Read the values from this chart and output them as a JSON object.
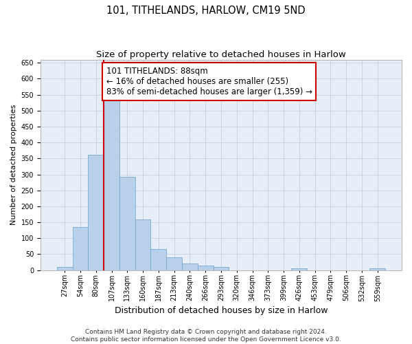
{
  "title": "101, TITHELANDS, HARLOW, CM19 5ND",
  "subtitle": "Size of property relative to detached houses in Harlow",
  "xlabel": "Distribution of detached houses by size in Harlow",
  "ylabel": "Number of detached properties",
  "categories": [
    "27sqm",
    "54sqm",
    "80sqm",
    "107sqm",
    "133sqm",
    "160sqm",
    "187sqm",
    "213sqm",
    "240sqm",
    "266sqm",
    "293sqm",
    "320sqm",
    "346sqm",
    "373sqm",
    "399sqm",
    "426sqm",
    "453sqm",
    "479sqm",
    "506sqm",
    "532sqm",
    "559sqm"
  ],
  "values": [
    10,
    135,
    362,
    538,
    293,
    159,
    65,
    40,
    20,
    14,
    9,
    0,
    0,
    0,
    0,
    5,
    0,
    0,
    0,
    0,
    5
  ],
  "bar_color": "#b8d0ea",
  "bar_edge_color": "#7aaacf",
  "grid_color": "#c8d4e8",
  "background_color": "#e8eef8",
  "vline_x_index": 3,
  "vline_color": "#cc0000",
  "annotation_line1": "101 TITHELANDS: 88sqm",
  "annotation_line2": "← 16% of detached houses are smaller (255)",
  "annotation_line3": "83% of semi-detached houses are larger (1,359) →",
  "annotation_box_color": "#ffffff",
  "annotation_box_edge": "#cc0000",
  "ylim": [
    0,
    660
  ],
  "yticks": [
    0,
    50,
    100,
    150,
    200,
    250,
    300,
    350,
    400,
    450,
    500,
    550,
    600,
    650
  ],
  "footer1": "Contains HM Land Registry data © Crown copyright and database right 2024.",
  "footer2": "Contains public sector information licensed under the Open Government Licence v3.0.",
  "title_fontsize": 10.5,
  "subtitle_fontsize": 9.5,
  "xlabel_fontsize": 9,
  "ylabel_fontsize": 8,
  "tick_fontsize": 7,
  "annot_fontsize": 8.5,
  "footer_fontsize": 6.5
}
